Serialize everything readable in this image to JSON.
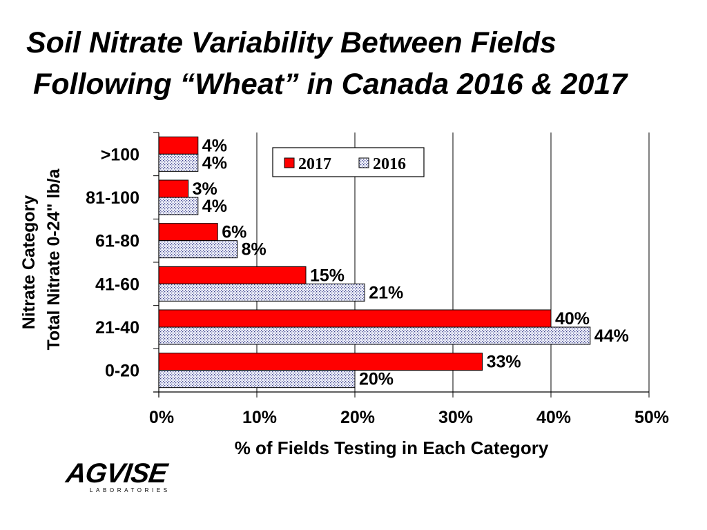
{
  "page": {
    "title_line1": "Soil Nitrate Variability Between Fields",
    "title_line2": "Following “Wheat” in Canada 2016 & 2017",
    "logo_text": "AGVISE",
    "logo_subtext": "LABORATORIES"
  },
  "chart_data": {
    "type": "bar",
    "orientation": "horizontal",
    "categories": [
      ">100",
      "81-100",
      "61-80",
      "41-60",
      "21-40",
      "0-20"
    ],
    "series": [
      {
        "name": "2017",
        "values": [
          4,
          3,
          6,
          15,
          40,
          33
        ],
        "labels": [
          "4%",
          "3%",
          "6%",
          "15%",
          "40%",
          "33%"
        ],
        "color": "#ff0000",
        "pattern": "solid"
      },
      {
        "name": "2016",
        "values": [
          4,
          4,
          8,
          21,
          44,
          20
        ],
        "labels": [
          "4%",
          "4%",
          "8%",
          "21%",
          "44%",
          "20%"
        ],
        "color": "#d8dcf0",
        "pattern": "dotted"
      }
    ],
    "xlabel": "% of Fields Testing in Each Category",
    "ylabel_line1": "Nitrate Category",
    "ylabel_line2": "Total Nitrate 0-24\" lb/a",
    "xlim": [
      0,
      50
    ],
    "xticks": [
      0,
      10,
      20,
      30,
      40,
      50
    ],
    "xtick_labels": [
      "0%",
      "10%",
      "20%",
      "30%",
      "40%",
      "50%"
    ],
    "grid": "vertical",
    "legend": {
      "position": "top-right",
      "entries": [
        "2017",
        "2016"
      ]
    }
  }
}
